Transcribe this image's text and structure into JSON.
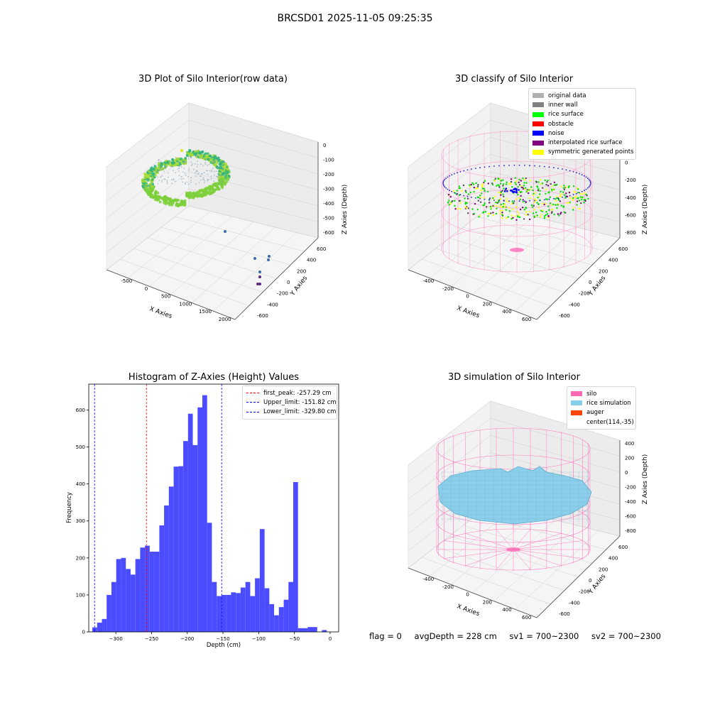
{
  "suptitle": "BRCSD01 2025-11-05 09:25:35",
  "footer": {
    "flag": "flag = 0",
    "avg_depth": "avgDepth = 228 cm",
    "sv1": "sv1 = 700~2300",
    "sv2": "sv2 = 700~2300"
  },
  "colors": {
    "histogram_bar": "#4b4bff",
    "first_peak": "#ff0000",
    "limit_lines": "#0000ff",
    "silo_wire": "#ff69b4",
    "rice_sim": "#87ceeb"
  },
  "chart_data": [
    {
      "type": "scatter",
      "title": "3D Plot of Silo Interior(row data)",
      "xlabel": "X Axies",
      "ylabel": "Y Axies",
      "zlabel": "Z Axies (Depth)",
      "xticks": [
        "-500",
        "0",
        "500",
        "1000",
        "1500",
        "2000"
      ],
      "yticks": [
        "-600",
        "-400",
        "-200",
        "0",
        "200",
        "400",
        "600"
      ],
      "zticks": [
        "0",
        "-100",
        "-200",
        "-300",
        "-400",
        "-500",
        "-600"
      ]
    },
    {
      "type": "scatter",
      "title": "3D classify of Silo Interior",
      "xlabel": "X Axies",
      "ylabel": "Y Axies",
      "zlabel": "Z Axies (Depth)",
      "xticks": [
        "-400",
        "-200",
        "0",
        "200",
        "400",
        "600"
      ],
      "yticks": [
        "-600",
        "-400",
        "-200",
        "0",
        "200",
        "400",
        "600"
      ],
      "zticks": [
        "200",
        "0",
        "-200",
        "-400",
        "-600",
        "-800"
      ],
      "legend": [
        {
          "label": "original data",
          "color": "#b0b0b0"
        },
        {
          "label": "inner wall",
          "color": "#808080"
        },
        {
          "label": "rice surface",
          "color": "#00ff00"
        },
        {
          "label": "obstacle",
          "color": "#ff0000"
        },
        {
          "label": "noise",
          "color": "#0000ff"
        },
        {
          "label": "interpolated rice surface",
          "color": "#800080"
        },
        {
          "label": "symmetric generated points",
          "color": "#ffff00"
        }
      ]
    },
    {
      "type": "bar",
      "title": "Histogram of Z-Axies (Height) Values",
      "xlabel": "Depth (cm)",
      "ylabel": "Frequency",
      "xlim": [
        -338,
        12
      ],
      "ylim": [
        0,
        670
      ],
      "xticks": [
        -300,
        -250,
        -200,
        -150,
        -100,
        -50,
        0
      ],
      "yticks": [
        0,
        100,
        200,
        300,
        400,
        500,
        600
      ],
      "bin_start": -333,
      "bin_width": 6.7,
      "values": [
        12,
        25,
        35,
        100,
        135,
        197,
        200,
        170,
        155,
        197,
        228,
        233,
        217,
        217,
        288,
        342,
        393,
        447,
        448,
        516,
        590,
        505,
        607,
        640,
        295,
        135,
        97,
        100,
        100,
        107,
        105,
        120,
        135,
        97,
        145,
        278,
        118,
        75,
        45,
        67,
        87,
        135,
        405,
        10,
        10,
        13,
        13,
        0,
        5,
        0
      ],
      "vlines": [
        {
          "label": "first_peak: -257.29 cm",
          "x": -257.29,
          "color": "#ff0000"
        },
        {
          "label": "Upper_limit: -151.82 cm",
          "x": -151.82,
          "color": "#0000ff"
        },
        {
          "label": "Lower_limit: -329.80 cm",
          "x": -329.8,
          "color": "#0000ff"
        }
      ]
    },
    {
      "type": "area",
      "title": "3D simulation of Silo Interior",
      "xlabel": "X Axies",
      "ylabel": "Y Axies",
      "zlabel": "Z Axies (Depth)",
      "xticks": [
        "-400",
        "-200",
        "0",
        "200",
        "400",
        "600"
      ],
      "yticks": [
        "-600",
        "-400",
        "-200",
        "0",
        "200",
        "400",
        "600"
      ],
      "zticks": [
        "400",
        "200",
        "0",
        "-200",
        "-400",
        "-600",
        "-800"
      ],
      "legend": [
        {
          "label": "silo",
          "color": "#ff69b4"
        },
        {
          "label": "rice simulation",
          "color": "#87ceeb"
        },
        {
          "label": "auger",
          "color": "#ff4500"
        },
        {
          "label": "center(114,-35)",
          "color": ""
        }
      ]
    }
  ]
}
